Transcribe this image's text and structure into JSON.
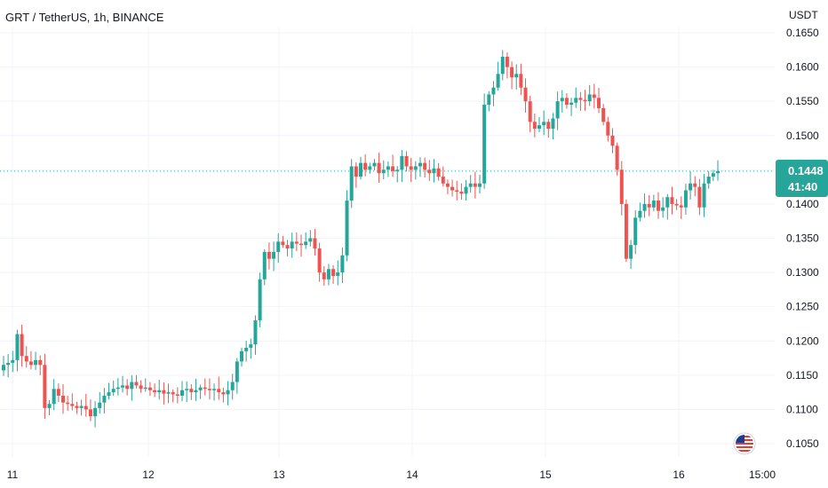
{
  "chart_data": {
    "type": "candlestick",
    "title": "GRT / TetherUS, 1h, BINANCE",
    "unit": "USDT",
    "ylim": [
      0.1025,
      0.1675
    ],
    "y_ticks": [
      "0.1650",
      "0.1600",
      "0.1550",
      "0.1500",
      "0.1450",
      "0.1400",
      "0.1350",
      "0.1300",
      "0.1250",
      "0.1200",
      "0.1150",
      "0.1100",
      "0.1050"
    ],
    "x_ticks": [
      "11",
      "12",
      "13",
      "14",
      "15",
      "16",
      "15:00"
    ],
    "last_price": "0.1448",
    "countdown": "41:40",
    "colors": {
      "up": "#26a69a",
      "down": "#ef5350",
      "grid": "#f0f3fa",
      "last_line": "#26a69a"
    },
    "close_series": [
      0.1165,
      0.1168,
      0.1172,
      0.121,
      0.1178,
      0.117,
      0.1165,
      0.1172,
      0.1165,
      0.1102,
      0.1108,
      0.113,
      0.112,
      0.111,
      0.1108,
      0.1105,
      0.1102,
      0.1105,
      0.11,
      0.109,
      0.1102,
      0.111,
      0.112,
      0.1125,
      0.113,
      0.1132,
      0.1135,
      0.113,
      0.114,
      0.1135,
      0.113,
      0.1132,
      0.1128,
      0.1125,
      0.1128,
      0.1123,
      0.1125,
      0.1122,
      0.112,
      0.1128,
      0.113,
      0.1125,
      0.1128,
      0.1132,
      0.113,
      0.1128,
      0.113,
      0.1125,
      0.1122,
      0.1128,
      0.114,
      0.117,
      0.1185,
      0.119,
      0.1195,
      0.123,
      0.129,
      0.133,
      0.132,
      0.133,
      0.1345,
      0.134,
      0.1335,
      0.1345,
      0.1342,
      0.134,
      0.1345,
      0.135,
      0.1335,
      0.13,
      0.129,
      0.1305,
      0.1295,
      0.13,
      0.1325,
      0.1405,
      0.1455,
      0.144,
      0.146,
      0.145,
      0.1455,
      0.146,
      0.1445,
      0.145,
      0.1455,
      0.1448,
      0.145,
      0.147,
      0.1455,
      0.145,
      0.1455,
      0.146,
      0.145,
      0.1445,
      0.1452,
      0.144,
      0.143,
      0.1425,
      0.142,
      0.1418,
      0.1415,
      0.1425,
      0.143,
      0.1425,
      0.143,
      0.1545,
      0.156,
      0.157,
      0.159,
      0.1615,
      0.16,
      0.1585,
      0.159,
      0.157,
      0.155,
      0.152,
      0.151,
      0.1515,
      0.152,
      0.151,
      0.1525,
      0.155,
      0.1555,
      0.1545,
      0.1548,
      0.1555,
      0.1552,
      0.155,
      0.156,
      0.1555,
      0.154,
      0.152,
      0.15,
      0.1485,
      0.145,
      0.14,
      0.132,
      0.134,
      0.138,
      0.139,
      0.14,
      0.1395,
      0.1405,
      0.139,
      0.1395,
      0.141,
      0.14,
      0.1398,
      0.1395,
      0.142,
      0.143,
      0.1425,
      0.1395,
      0.143,
      0.144,
      0.1445,
      0.1448
    ]
  }
}
